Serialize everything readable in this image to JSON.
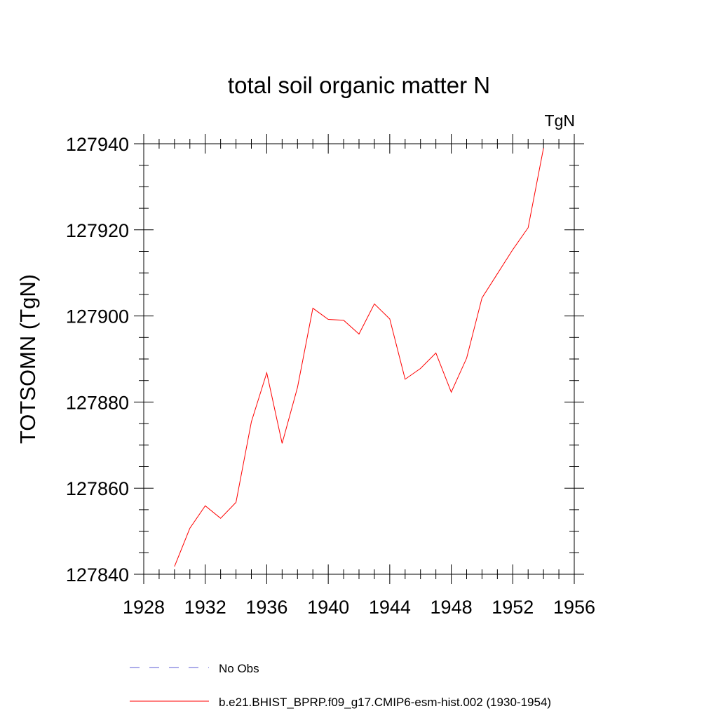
{
  "chart_data": {
    "type": "line",
    "title": "total soil organic matter N",
    "units_label": "TgN",
    "ylabel": "TOTSOMN  (TgN)",
    "xlabel": "",
    "xlim": [
      1928,
      1956
    ],
    "ylim": [
      127840,
      127940
    ],
    "x_ticks": [
      1928,
      1932,
      1936,
      1940,
      1944,
      1948,
      1952,
      1956
    ],
    "y_ticks": [
      127840,
      127860,
      127880,
      127900,
      127920,
      127940
    ],
    "x_minor_step": 1,
    "y_minor_step": 5,
    "grid": false,
    "legend_position": "bottom",
    "series": [
      {
        "name": "No Obs",
        "color": "#5b5bd6",
        "style": "dashed",
        "x": [],
        "y": []
      },
      {
        "name": "b.e21.BHIST_BPRP.f09_g17.CMIP6-esm-hist.002 (1930-1954)",
        "color": "#ff0000",
        "style": "solid",
        "x": [
          1930,
          1931,
          1932,
          1933,
          1934,
          1935,
          1936,
          1937,
          1938,
          1939,
          1940,
          1941,
          1942,
          1943,
          1944,
          1945,
          1946,
          1947,
          1948,
          1949,
          1950,
          1951,
          1952,
          1953,
          1954
        ],
        "y": [
          127841.8,
          127850.7,
          127855.9,
          127853.0,
          127856.7,
          127875.4,
          127886.8,
          127870.4,
          127883.4,
          127901.8,
          127899.2,
          127899.0,
          127895.8,
          127902.8,
          127899.3,
          127885.3,
          127887.8,
          127891.4,
          127882.3,
          127890.2,
          127904.2,
          127909.8,
          127915.4,
          127920.5,
          127939.0
        ]
      }
    ]
  }
}
